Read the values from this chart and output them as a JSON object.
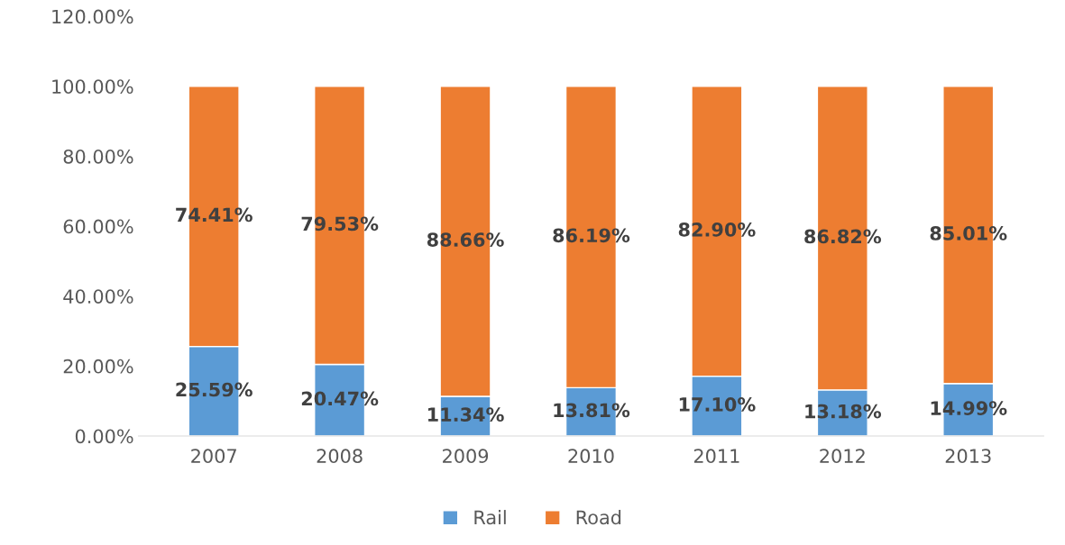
{
  "chart_data": {
    "type": "bar",
    "stacked": true,
    "categories": [
      "2007",
      "2008",
      "2009",
      "2010",
      "2011",
      "2012",
      "2013"
    ],
    "series": [
      {
        "name": "Rail",
        "color": "#5b9bd5",
        "values": [
          25.59,
          20.47,
          11.34,
          13.81,
          17.1,
          13.18,
          14.99
        ],
        "value_labels": [
          "25.59%",
          "20.47%",
          "11.34%",
          "13.81%",
          "17.10%",
          "13.18%",
          "14.99%"
        ]
      },
      {
        "name": "Road",
        "color": "#ed7d31",
        "values": [
          74.41,
          79.53,
          88.66,
          86.19,
          82.9,
          86.82,
          85.01
        ],
        "value_labels": [
          "74.41%",
          "79.53%",
          "88.66%",
          "86.19%",
          "82.90%",
          "86.82%",
          "85.01%"
        ]
      }
    ],
    "ylim": [
      0,
      120
    ],
    "yticks": [
      {
        "value": 0,
        "label": "0.00%"
      },
      {
        "value": 20,
        "label": "20.00%"
      },
      {
        "value": 40,
        "label": "40.00%"
      },
      {
        "value": 60,
        "label": "60.00%"
      },
      {
        "value": 80,
        "label": "80.00%"
      },
      {
        "value": 100,
        "label": "100.00%"
      },
      {
        "value": 120,
        "label": "120.00%"
      }
    ],
    "legend": "bottom"
  }
}
